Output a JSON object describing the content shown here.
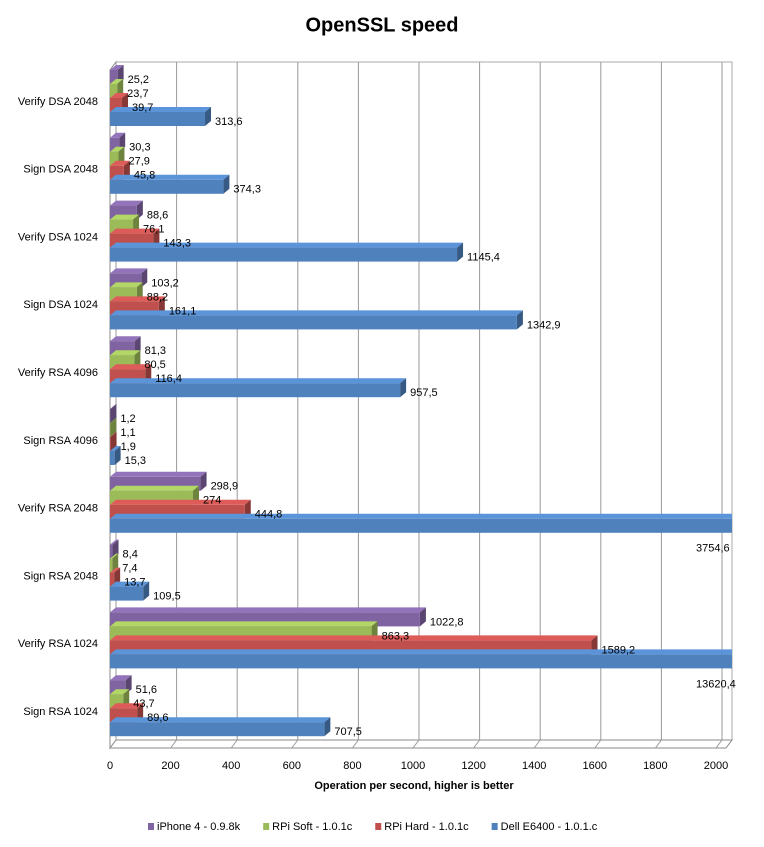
{
  "chart_data": {
    "type": "bar",
    "orientation": "horizontal",
    "title": "OpenSSL speed",
    "x_label": "Operation per second, higher is better",
    "categories": [
      "Verify DSA 2048",
      "Sign DSA 2048",
      "Verify DSA 1024",
      "Sign DSA 1024",
      "Verify RSA 4096",
      "Sign RSA 4096",
      "Verify RSA 2048",
      "Sign RSA 2048",
      "Verify RSA 1024",
      "Sign RSA 1024"
    ],
    "series": [
      {
        "name": "iPhone 4  - 0.9.8k",
        "color": "#8064a2",
        "values": [
          25.2,
          30.3,
          88.6,
          103.2,
          81.3,
          1.2,
          298.9,
          8.4,
          1022.8,
          51.6
        ],
        "value_labels": [
          "25,2",
          "30,3",
          "88,6",
          "103,2",
          "81,3",
          "1,2",
          "298,9",
          "8,4",
          "1022,8",
          "51,6"
        ]
      },
      {
        "name": "RPi Soft - 1.0.1c",
        "color": "#9bbb59",
        "values": [
          23.7,
          27.9,
          76.1,
          88.2,
          80.5,
          1.1,
          274,
          7.4,
          863.3,
          43.7
        ],
        "value_labels": [
          "23,7",
          "27,9",
          "76,1",
          "88,2",
          "80,5",
          "1,1",
          "274",
          "7,4",
          "863,3",
          "43,7"
        ]
      },
      {
        "name": "RPi Hard - 1.0.1c",
        "color": "#c0504d",
        "values": [
          39.7,
          45.8,
          143.3,
          161.1,
          116.4,
          1.9,
          444.8,
          13.7,
          1589.2,
          89.6
        ],
        "value_labels": [
          "39,7",
          "45,8",
          "143,3",
          "161,1",
          "116,4",
          "1,9",
          "444,8",
          "13,7",
          "1589,2",
          "89,6"
        ]
      },
      {
        "name": "Dell E6400 - 1.0.1.c",
        "color": "#4f81bd",
        "values": [
          313.6,
          374.3,
          1145.4,
          1342.9,
          957.5,
          15.3,
          3754.6,
          109.5,
          13620.4,
          707.5
        ],
        "value_labels": [
          "313,6",
          "374,3",
          "1145,4",
          "1342,9",
          "957,5",
          "15,3",
          "3754,6",
          "109,5",
          "13620,4",
          "707,5"
        ]
      }
    ],
    "xlim": [
      0,
      2000
    ],
    "xticks": [
      0,
      200,
      400,
      600,
      800,
      1000,
      1200,
      1400,
      1600,
      1800,
      2000
    ],
    "grid": true,
    "legend": "bottom"
  }
}
